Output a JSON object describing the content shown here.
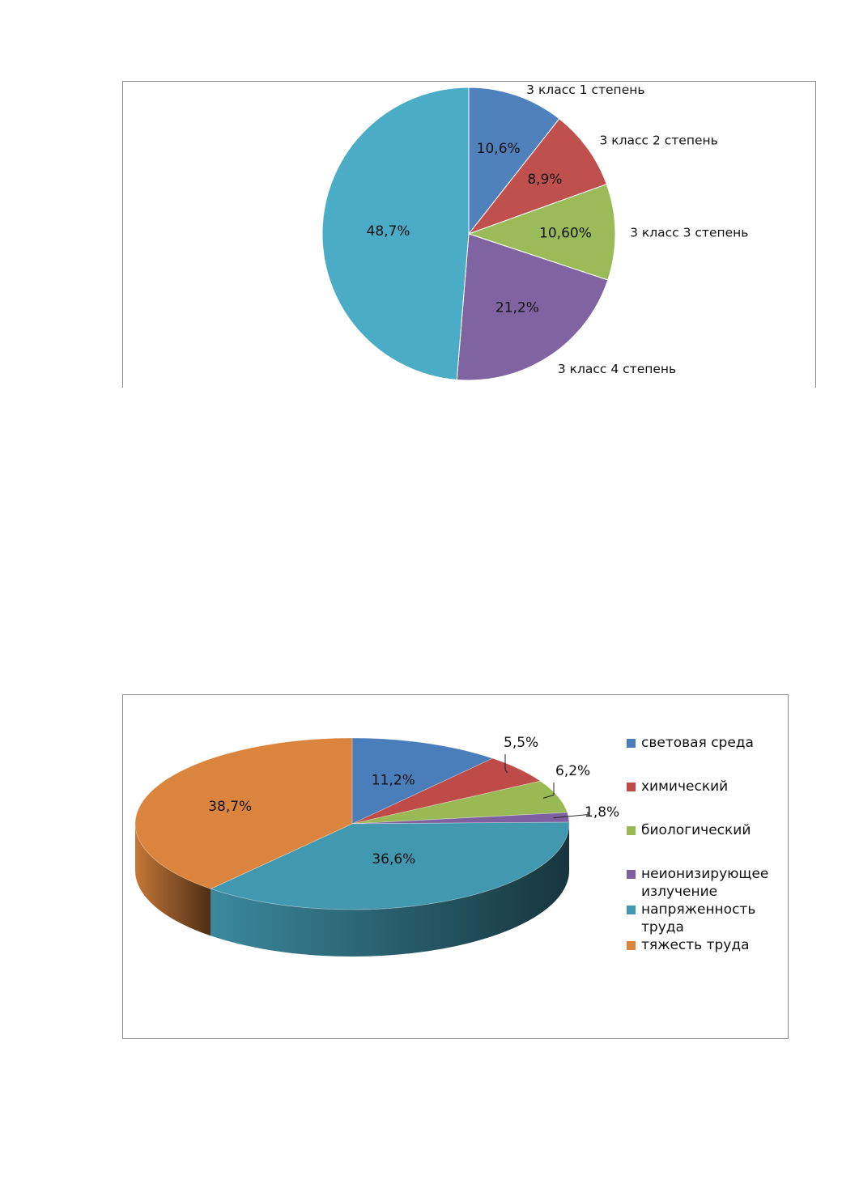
{
  "chart_data": [
    {
      "type": "pie",
      "categories": [
        "3 класс 1 степень",
        "3 класс 2 степень",
        "3 класс 3 степень",
        "3 класс 4 степень",
        ""
      ],
      "values": [
        10.6,
        8.9,
        10.6,
        21.2,
        48.7
      ],
      "data_labels": [
        "10,6%",
        "8,9%",
        "10,60%",
        "21,2%",
        "48,7%"
      ],
      "colors": [
        "#4f81bd",
        "#c0504d",
        "#9bbb59",
        "#8064a2",
        "#4bacc6"
      ],
      "legend": "none"
    },
    {
      "type": "pie",
      "style": "3d",
      "categories": [
        "световая среда",
        "химический",
        "биологический",
        "неионизирующее излучение",
        "напряженность труда",
        "тяжесть труда"
      ],
      "values": [
        11.2,
        5.5,
        6.2,
        1.8,
        36.6,
        38.7
      ],
      "data_labels": [
        "11,2%",
        "5,5%",
        "6,2%",
        "1,8%",
        "36,6%",
        "38,7%"
      ],
      "colors": [
        "#4a7ebb",
        "#be4b48",
        "#98b954",
        "#7d60a0",
        "#4198af",
        "#db843d"
      ],
      "legend": "right",
      "legend_lines": [
        [
          "световая среда"
        ],
        [
          "химический"
        ],
        [
          "биологический"
        ],
        [
          "неионизирующее",
          "излучение"
        ],
        [
          "напряженность",
          "труда"
        ],
        [
          "тяжесть труда"
        ]
      ]
    }
  ]
}
